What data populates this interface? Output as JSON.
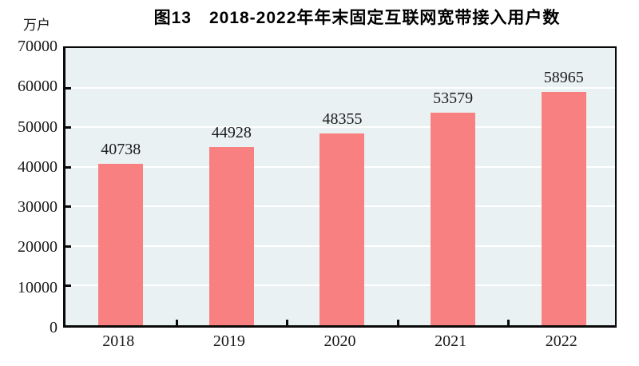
{
  "chart_data": {
    "type": "bar",
    "title": "图13　2018-2022年年末固定互联网宽带接入用户数",
    "unit": "万户",
    "categories": [
      "2018",
      "2019",
      "2020",
      "2021",
      "2022"
    ],
    "values": [
      40738,
      44928,
      48355,
      53579,
      58965
    ],
    "value_labels": [
      "40738",
      "44928",
      "48355",
      "53579",
      "58965"
    ],
    "ylim": [
      0,
      70000
    ],
    "ytick_step": 10000,
    "ytick_labels": [
      "0",
      "10000",
      "20000",
      "30000",
      "40000",
      "50000",
      "60000",
      "70000"
    ],
    "grid": true,
    "legend": "none",
    "colors": {
      "bar": "#f98080",
      "plot_background": "#e9f1f2",
      "gridline": "#ffffff",
      "axis": "#0a0a0a",
      "text": "#1a1a1a"
    }
  }
}
